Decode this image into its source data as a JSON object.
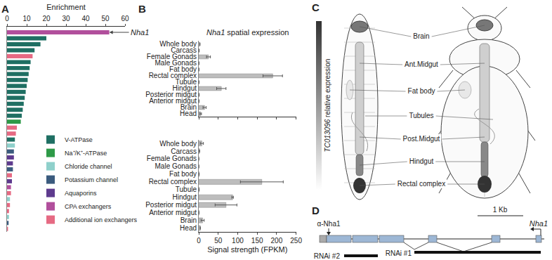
{
  "chart_data": [
    {
      "type": "bar",
      "orientation": "horizontal",
      "panel": "A",
      "x_label": "Enrichment",
      "categories": [
        null,
        null,
        null,
        null,
        null,
        null,
        null,
        null,
        null,
        null,
        null,
        null,
        null,
        null,
        null,
        null,
        null,
        null,
        null,
        null,
        null,
        null,
        null,
        null,
        null,
        null,
        null,
        null,
        null,
        null,
        null,
        null,
        null,
        null
      ],
      "series": [
        {
          "name": "V-ATPase",
          "color": "#1f6f63",
          "values": [
            null,
            20,
            17,
            14,
            null,
            12,
            11.5,
            11,
            10.5,
            10,
            9.5,
            9,
            8.5,
            8,
            7.5,
            null,
            null,
            null,
            4,
            null,
            null,
            null,
            null,
            null,
            null,
            null,
            null,
            null,
            null,
            null,
            null,
            null,
            null,
            null
          ]
        },
        {
          "name": "Na⁺/K⁺-ATPase",
          "color": "#2e9a48",
          "values": [
            null,
            null,
            null,
            null,
            null,
            null,
            null,
            null,
            null,
            null,
            null,
            null,
            null,
            null,
            null,
            7,
            null,
            null,
            null,
            null,
            null,
            null,
            null,
            null,
            null,
            null,
            null,
            null,
            null,
            null,
            null,
            null,
            null,
            null
          ]
        },
        {
          "name": "Chloride channel",
          "color": "#8fd0cb",
          "values": [
            null,
            null,
            null,
            null,
            null,
            null,
            null,
            null,
            null,
            null,
            null,
            null,
            null,
            null,
            null,
            null,
            null,
            null,
            null,
            4,
            null,
            null,
            null,
            null,
            null,
            null,
            null,
            null,
            1.5,
            null,
            null,
            1,
            null,
            null
          ]
        },
        {
          "name": "Potassium channel",
          "color": "#3b5b7e",
          "values": [
            null,
            null,
            null,
            null,
            null,
            null,
            null,
            null,
            null,
            null,
            null,
            null,
            null,
            null,
            null,
            null,
            null,
            null,
            null,
            null,
            3.5,
            null,
            null,
            3,
            null,
            null,
            null,
            null,
            null,
            null,
            null,
            null,
            0.8,
            null
          ]
        },
        {
          "name": "Aquaporins",
          "color": "#5e3b8e",
          "values": [
            null,
            null,
            null,
            null,
            null,
            null,
            null,
            null,
            null,
            null,
            null,
            null,
            null,
            null,
            null,
            null,
            null,
            null,
            null,
            null,
            null,
            3.5,
            3,
            null,
            null,
            2.5,
            null,
            null,
            null,
            null,
            null,
            null,
            null,
            null
          ]
        },
        {
          "name": "CPA exchangers",
          "color": "#b14f9c",
          "values": [
            52,
            null,
            null,
            null,
            null,
            null,
            null,
            null,
            null,
            null,
            null,
            null,
            null,
            null,
            null,
            null,
            null,
            null,
            null,
            null,
            null,
            null,
            null,
            null,
            null,
            null,
            2,
            null,
            null,
            null,
            null,
            null,
            null,
            null
          ]
        },
        {
          "name": "Additional ion exchangers",
          "color": "#e66a83",
          "values": [
            null,
            null,
            null,
            null,
            13,
            null,
            null,
            null,
            null,
            null,
            null,
            null,
            null,
            null,
            null,
            null,
            5,
            4.5,
            null,
            null,
            null,
            null,
            null,
            null,
            2.5,
            null,
            null,
            2,
            null,
            1.5,
            1,
            null,
            null,
            0.5
          ]
        }
      ],
      "xlim": [
        0,
        60
      ],
      "xticks": [
        0,
        10,
        20,
        30,
        40,
        50,
        60
      ],
      "tick_labels": "x",
      "legend": "lower left",
      "grid": false,
      "annotations": [
        {
          "text": "Nha1",
          "index": 0
        }
      ]
    },
    {
      "type": "bar",
      "orientation": "horizontal",
      "panel": "B",
      "title": "Nha1 spatial expression",
      "categories": [
        "Whole body",
        "Carcass",
        "Female Gonads",
        "Male Gonads",
        "Fat body",
        "Rectal complex",
        "Tubule",
        "Hindgut",
        "Posterior midgut",
        "Anterior midgut",
        "Brain",
        "Head"
      ],
      "values": [
        3,
        1,
        25,
        0.5,
        0.5,
        190,
        0.5,
        58,
        1,
        0.5,
        15,
        5
      ],
      "errors": [
        null,
        null,
        5,
        null,
        null,
        25,
        null,
        12,
        null,
        null,
        4,
        2
      ],
      "color": "#bdbdbd",
      "xlim": [
        0,
        250
      ],
      "xticks": [
        0,
        50,
        100,
        150,
        200,
        250
      ],
      "tick_labels": "y",
      "grid": false
    },
    {
      "type": "bar",
      "orientation": "horizontal",
      "x_label": "Signal strength (FPKM)",
      "categories": [
        "Whole body",
        "Carcass",
        "Female Gonads",
        "Male Gonads",
        "Fat body",
        "Rectal complex",
        "Tubule",
        "Hindgut",
        "Posterior midgut",
        "Anterior midgut",
        "Brain",
        "Head"
      ],
      "values": [
        8,
        2,
        0,
        0,
        1,
        162,
        1,
        87,
        70,
        0.5,
        10,
        4
      ],
      "errors": [
        4,
        null,
        null,
        null,
        null,
        55,
        null,
        2,
        28,
        null,
        4,
        null
      ],
      "color": "#bdbdbd",
      "xlim": [
        0,
        250
      ],
      "xticks": [
        0,
        50,
        100,
        150,
        200,
        250
      ],
      "grid": false
    }
  ],
  "diagram_c": {
    "panel": "C",
    "scale_label": "TC013096 relative expression",
    "labels": [
      "Brain",
      "Ant.Midgut",
      "Fat body",
      "Tubules",
      "Post.Midgut",
      "Hindgut",
      "Rectal complex"
    ]
  },
  "diagram_d": {
    "panel": "D",
    "gene": "Nha1",
    "scale_bar": "1 Kb",
    "antibody": "α-Nha1",
    "rnai": [
      "RNAi #1",
      "RNAi #2"
    ]
  }
}
